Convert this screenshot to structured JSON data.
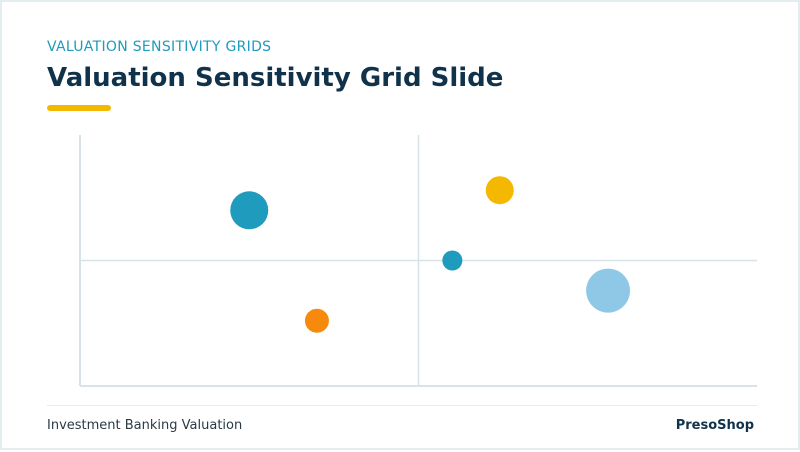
{
  "slide": {
    "kicker": "VALUATION SENSITIVITY GRIDS",
    "title": "Valuation Sensitivity Grid Slide",
    "footer_left": "Investment Banking Valuation",
    "footer_right": "PresoShop"
  },
  "colors": {
    "accent": "#f5b800",
    "teal": "#1e9bbd",
    "orange": "#f78a0c",
    "light_blue": "#8fc8e6",
    "navy": "#10324a",
    "axis": "#d8e3e7"
  },
  "chart_data": {
    "type": "scatter",
    "title": "",
    "xlabel": "",
    "ylabel": "",
    "xlim": [
      0,
      100
    ],
    "ylim": [
      0,
      100
    ],
    "grid": false,
    "quadrant_divider": {
      "x": 50,
      "y": 50
    },
    "points": [
      {
        "x": 25,
        "y": 70,
        "size": 19,
        "color": "#1e9bbd"
      },
      {
        "x": 35,
        "y": 26,
        "size": 12,
        "color": "#f78a0c"
      },
      {
        "x": 62,
        "y": 78,
        "size": 14,
        "color": "#f5b800"
      },
      {
        "x": 55,
        "y": 50,
        "size": 10,
        "color": "#1e9bbd"
      },
      {
        "x": 78,
        "y": 38,
        "size": 22,
        "color": "#8fc8e6"
      }
    ]
  }
}
